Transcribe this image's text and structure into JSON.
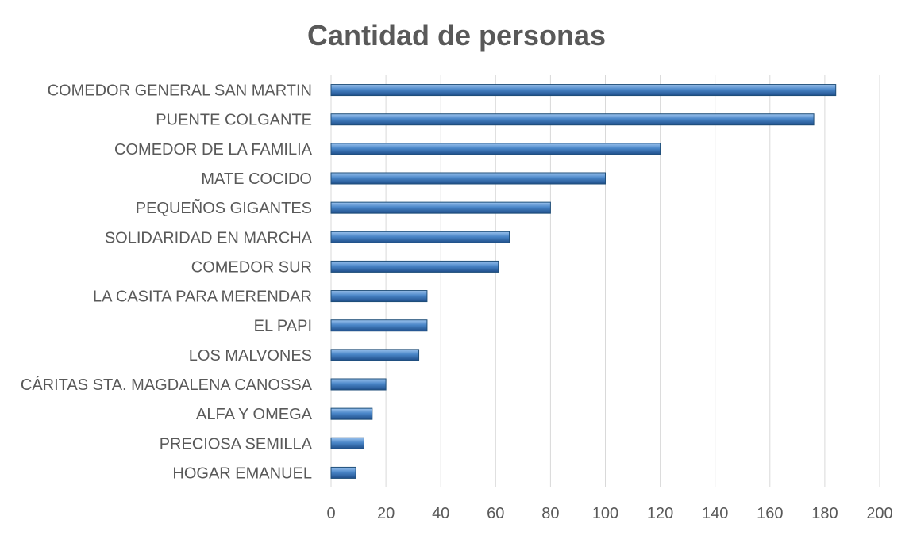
{
  "chart_data": {
    "type": "bar",
    "orientation": "horizontal",
    "title": "Cantidad de personas",
    "xlabel": "",
    "ylabel": "",
    "xlim": [
      0,
      200
    ],
    "ticks": [
      0,
      20,
      40,
      60,
      80,
      100,
      120,
      140,
      160,
      180,
      200
    ],
    "grid": true,
    "legend": "none",
    "bar_color": "#4a86c8",
    "categories": [
      "COMEDOR GENERAL SAN MARTIN",
      "PUENTE COLGANTE",
      "COMEDOR DE LA FAMILIA",
      "MATE COCIDO",
      "PEQUEÑOS GIGANTES",
      "SOLIDARIDAD EN MARCHA",
      "COMEDOR SUR",
      "LA CASITA PARA MERENDAR",
      "EL PAPI",
      "LOS MALVONES",
      "CÁRITAS STA. MAGDALENA CANOSSA",
      "ALFA Y OMEGA",
      "PRECIOSA SEMILLA",
      "HOGAR EMANUEL"
    ],
    "values": [
      184,
      176,
      120,
      100,
      80,
      65,
      61,
      35,
      35,
      32,
      20,
      15,
      12,
      9
    ]
  }
}
